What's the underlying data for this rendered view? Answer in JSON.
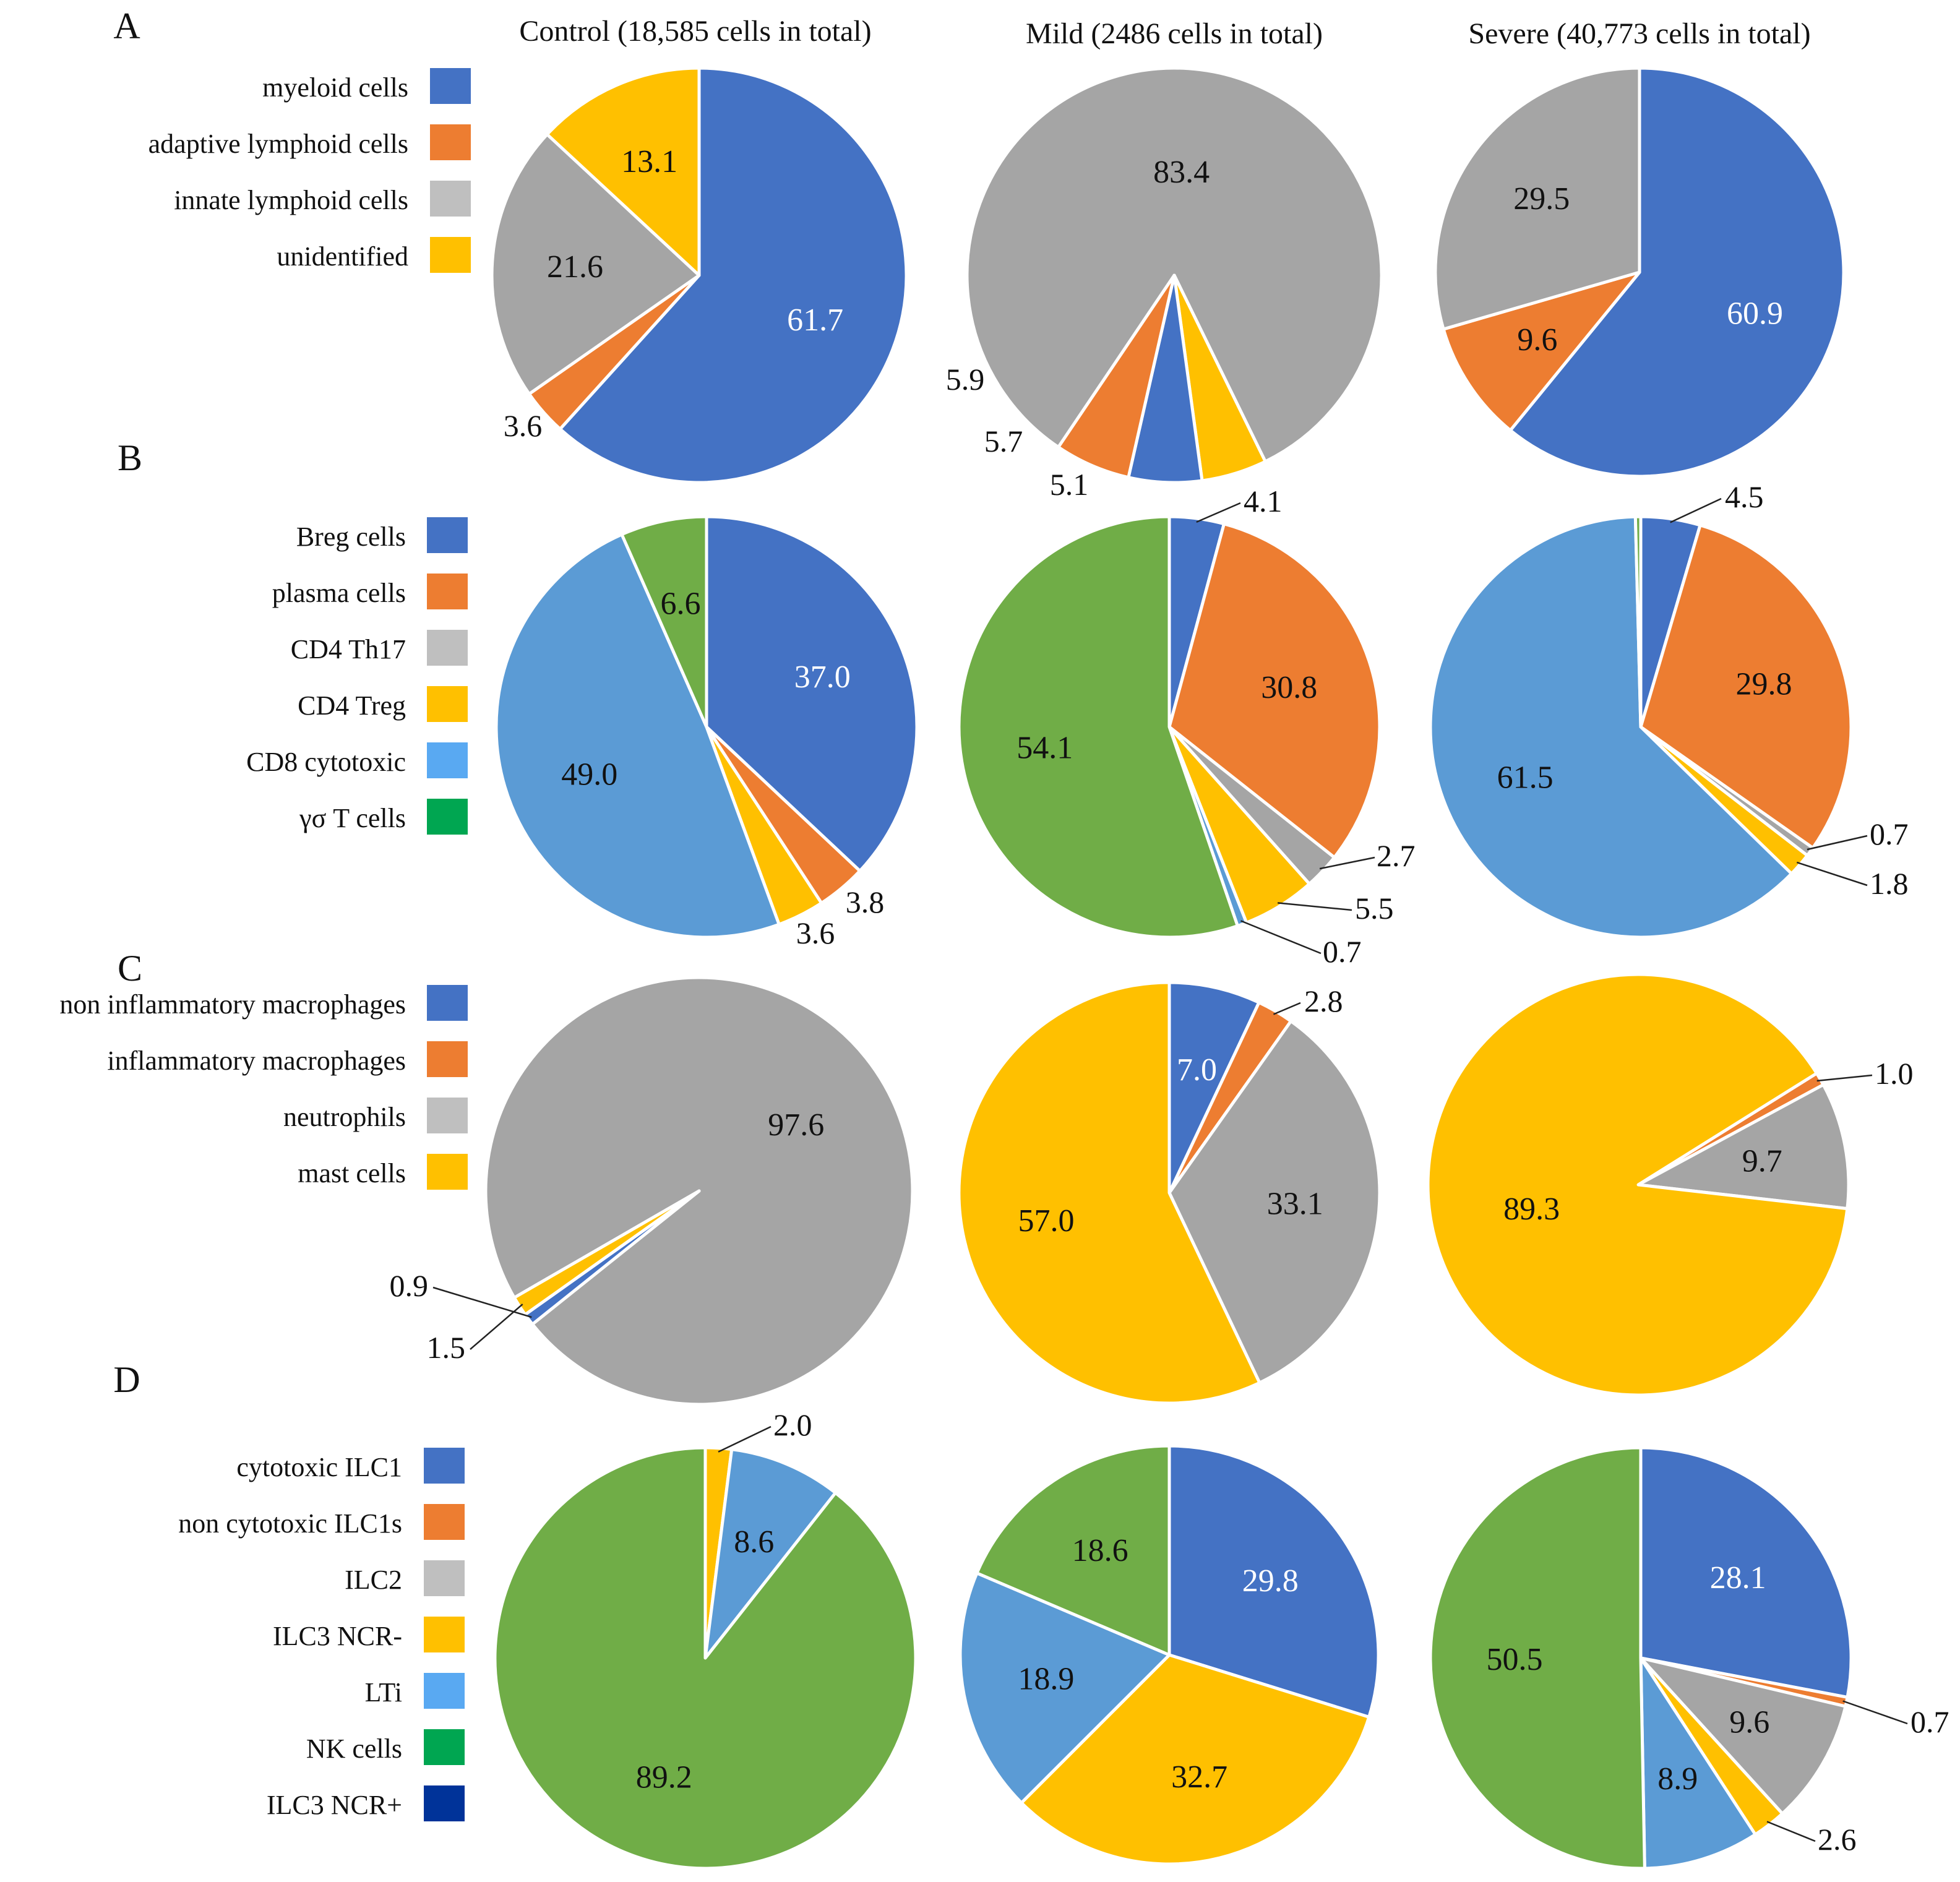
{
  "figure": {
    "column_titles": [
      "Control (18,585 cells in total)",
      "Mild (2486 cells in total)",
      "Severe (40,773 cells in total)"
    ],
    "colors": {
      "blue": "#4472C4",
      "orange": "#ED7D31",
      "gray": "#A5A5A5",
      "lightgray": "#BFBFBF",
      "yellow": "#FFC000",
      "lightblue": "#5B9BD5",
      "skyblue": "#59A9F2",
      "green": "#70AD47",
      "brightgreen": "#00A651",
      "navy": "#003399"
    }
  },
  "chart_data": [
    {
      "type": "pie",
      "panel": "A",
      "legend": [
        {
          "label": "myeloid cells",
          "color": "#4472C4"
        },
        {
          "label": "adaptive lymphoid cells",
          "color": "#ED7D31"
        },
        {
          "label": "innate lymphoid cells",
          "color": "#BFBFBF"
        },
        {
          "label": "unidentified",
          "color": "#FFC000"
        }
      ],
      "pies": [
        {
          "title": "Control (18,585 cells in total)",
          "slices": [
            {
              "value": 61.7,
              "label": "61.7",
              "color": "#4472C4",
              "label_color": "#ffffff"
            },
            {
              "value": 3.6,
              "label": "3.6",
              "color": "#ED7D31",
              "outside": true
            },
            {
              "value": 21.6,
              "label": "21.6",
              "color": "#A5A5A5"
            },
            {
              "value": 13.1,
              "label": "13.1",
              "color": "#FFC000"
            }
          ]
        },
        {
          "title": "Mild (2486 cells in total)",
          "start": 214,
          "slices": [
            {
              "value": 83.4,
              "label": "83.4",
              "color": "#A5A5A5"
            },
            {
              "value": 5.1,
              "label": "5.1",
              "color": "#FFC000",
              "outside": true
            },
            {
              "value": 5.7,
              "label": "5.7",
              "color": "#4472C4",
              "outside": true
            },
            {
              "value": 5.9,
              "label": "5.9",
              "color": "#ED7D31",
              "outside": true
            }
          ]
        },
        {
          "title": "Severe (40,773 cells in total)",
          "slices": [
            {
              "value": 60.9,
              "label": "60.9",
              "color": "#4472C4",
              "label_color": "#ffffff"
            },
            {
              "value": 9.6,
              "label": "9.6",
              "color": "#ED7D31"
            },
            {
              "value": 29.5,
              "label": "29.5",
              "color": "#A5A5A5"
            }
          ]
        }
      ]
    },
    {
      "type": "pie",
      "panel": "B",
      "legend": [
        {
          "label": "Breg cells",
          "color": "#4472C4"
        },
        {
          "label": "plasma cells",
          "color": "#ED7D31"
        },
        {
          "label": "CD4 Th17",
          "color": "#BFBFBF"
        },
        {
          "label": "CD4 Treg",
          "color": "#FFC000"
        },
        {
          "label": "CD8 cytotoxic",
          "color": "#59A9F2"
        },
        {
          "label": "γσ T cells",
          "color": "#00A651"
        }
      ],
      "pies": [
        {
          "slices": [
            {
              "value": 37.0,
              "label": "37.0",
              "color": "#4472C4",
              "label_color": "#ffffff"
            },
            {
              "value": 3.8,
              "label": "3.8",
              "color": "#ED7D31",
              "outside": true
            },
            {
              "value": 3.6,
              "label": "3.6",
              "color": "#FFC000",
              "outside": true
            },
            {
              "value": 49.0,
              "label": "49.0",
              "color": "#5B9BD5"
            },
            {
              "value": 6.6,
              "label": "6.6",
              "color": "#70AD47"
            }
          ]
        },
        {
          "slices": [
            {
              "value": 4.1,
              "label": "4.1",
              "color": "#4472C4",
              "outside": true
            },
            {
              "value": 30.8,
              "label": "30.8",
              "color": "#ED7D31"
            },
            {
              "value": 2.7,
              "label": "2.7",
              "color": "#A5A5A5",
              "outside": true
            },
            {
              "value": 5.5,
              "label": "5.5",
              "color": "#FFC000",
              "outside": true
            },
            {
              "value": 0.7,
              "label": "0.7",
              "color": "#5B9BD5",
              "outside": true
            },
            {
              "value": 54.1,
              "label": "54.1",
              "color": "#70AD47"
            }
          ]
        },
        {
          "slices": [
            {
              "value": 4.5,
              "label": "4.5",
              "color": "#4472C4",
              "outside": true
            },
            {
              "value": 29.8,
              "label": "29.8",
              "color": "#ED7D31"
            },
            {
              "value": 0.7,
              "label": "0.7",
              "color": "#A5A5A5",
              "outside": true
            },
            {
              "value": 1.8,
              "label": "1.8",
              "color": "#FFC000",
              "outside": true
            },
            {
              "value": 61.5,
              "label": "61.5",
              "color": "#5B9BD5"
            },
            {
              "value": 0.4,
              "label": "",
              "color": "#70AD47"
            }
          ]
        }
      ]
    },
    {
      "type": "pie",
      "panel": "C",
      "legend": [
        {
          "label": "non inflammatory macrophages",
          "color": "#4472C4"
        },
        {
          "label": "inflammatory macrophages",
          "color": "#ED7D31"
        },
        {
          "label": "neutrophils",
          "color": "#BFBFBF"
        },
        {
          "label": "mast cells",
          "color": "#FFC000"
        }
      ],
      "pies": [
        {
          "start": 240,
          "slices": [
            {
              "value": 97.6,
              "label": "97.6",
              "color": "#A5A5A5"
            },
            {
              "value": 0.9,
              "label": "0.9",
              "color": "#4472C4",
              "outside": true
            },
            {
              "value": 1.5,
              "label": "1.5",
              "color": "#FFC000",
              "outside": true
            }
          ]
        },
        {
          "slices": [
            {
              "value": 7.0,
              "label": "7.0",
              "color": "#4472C4",
              "label_color": "#ffffff"
            },
            {
              "value": 2.8,
              "label": "2.8",
              "color": "#ED7D31",
              "outside": true
            },
            {
              "value": 33.1,
              "label": "33.1",
              "color": "#A5A5A5"
            },
            {
              "value": 57.0,
              "label": "57.0",
              "color": "#FFC000"
            }
          ]
        },
        {
          "start": 58,
          "slices": [
            {
              "value": 1.0,
              "label": "1.0",
              "color": "#ED7D31",
              "outside": true
            },
            {
              "value": 9.7,
              "label": "9.7",
              "color": "#A5A5A5"
            },
            {
              "value": 89.3,
              "label": "89.3",
              "color": "#FFC000"
            }
          ]
        }
      ]
    },
    {
      "type": "pie",
      "panel": "D",
      "legend": [
        {
          "label": "cytotoxic ILC1",
          "color": "#4472C4"
        },
        {
          "label": "non cytotoxic ILC1s",
          "color": "#ED7D31"
        },
        {
          "label": "ILC2",
          "color": "#BFBFBF"
        },
        {
          "label": "ILC3 NCR-",
          "color": "#FFC000"
        },
        {
          "label": "LTi",
          "color": "#59A9F2"
        },
        {
          "label": "NK cells",
          "color": "#00A651"
        },
        {
          "label": "ILC3 NCR+",
          "color": "#003399"
        }
      ],
      "pies": [
        {
          "slices": [
            {
              "value": 2.0,
              "label": "2.0",
              "color": "#FFC000",
              "outside": true
            },
            {
              "value": 8.6,
              "label": "8.6",
              "color": "#5B9BD5"
            },
            {
              "value": 89.2,
              "label": "89.2",
              "color": "#70AD47"
            }
          ]
        },
        {
          "slices": [
            {
              "value": 29.8,
              "label": "29.8",
              "color": "#4472C4",
              "label_color": "#ffffff"
            },
            {
              "value": 32.7,
              "label": "32.7",
              "color": "#FFC000"
            },
            {
              "value": 18.9,
              "label": "18.9",
              "color": "#5B9BD5"
            },
            {
              "value": 18.6,
              "label": "18.6",
              "color": "#70AD47"
            }
          ]
        },
        {
          "slices": [
            {
              "value": 28.1,
              "label": "28.1",
              "color": "#4472C4",
              "label_color": "#ffffff"
            },
            {
              "value": 0.7,
              "label": "0.7",
              "color": "#ED7D31",
              "outside": true
            },
            {
              "value": 9.6,
              "label": "9.6",
              "color": "#A5A5A5"
            },
            {
              "value": 2.6,
              "label": "2.6",
              "color": "#FFC000",
              "outside": true
            },
            {
              "value": 8.9,
              "label": "8.9",
              "color": "#5B9BD5"
            },
            {
              "value": 50.5,
              "label": "50.5",
              "color": "#70AD47"
            }
          ]
        }
      ]
    }
  ]
}
